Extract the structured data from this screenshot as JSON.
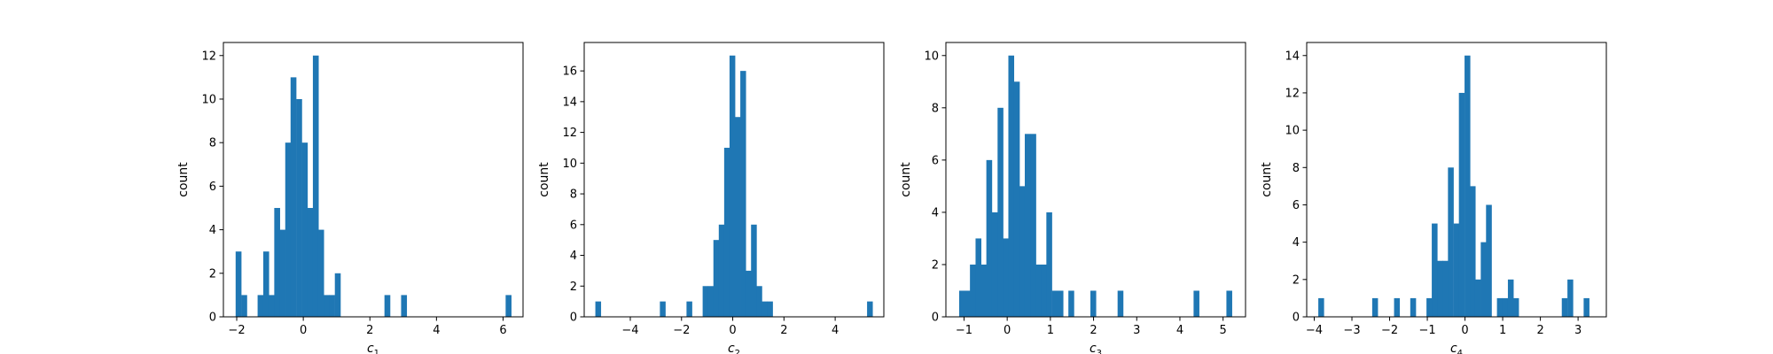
{
  "chart_data": [
    {
      "type": "bar",
      "xlabel": "c",
      "xlabel_sub": "1",
      "ylabel": "count",
      "xlim": [
        -2.4,
        6.6
      ],
      "ylim": [
        0,
        12.6
      ],
      "xticks": [
        -2,
        0,
        2,
        4,
        6
      ],
      "yticks": [
        0,
        2,
        4,
        6,
        8,
        10,
        12
      ],
      "grid": false,
      "bin_width": 0.165,
      "color": "#1f77b4",
      "bins": [
        {
          "x": -1.95,
          "count": 3
        },
        {
          "x": -1.78,
          "count": 1
        },
        {
          "x": -1.29,
          "count": 1
        },
        {
          "x": -1.12,
          "count": 3
        },
        {
          "x": -0.96,
          "count": 1
        },
        {
          "x": -0.79,
          "count": 5
        },
        {
          "x": -0.63,
          "count": 4
        },
        {
          "x": -0.46,
          "count": 8
        },
        {
          "x": -0.3,
          "count": 11
        },
        {
          "x": -0.13,
          "count": 10
        },
        {
          "x": 0.04,
          "count": 8
        },
        {
          "x": 0.2,
          "count": 5
        },
        {
          "x": 0.37,
          "count": 12
        },
        {
          "x": 0.53,
          "count": 4
        },
        {
          "x": 0.7,
          "count": 1
        },
        {
          "x": 0.86,
          "count": 1
        },
        {
          "x": 1.03,
          "count": 2
        },
        {
          "x": 2.52,
          "count": 1
        },
        {
          "x": 3.02,
          "count": 1
        },
        {
          "x": 6.16,
          "count": 1
        }
      ]
    },
    {
      "type": "bar",
      "xlabel": "c",
      "xlabel_sub": "2",
      "ylabel": "count",
      "xlim": [
        -5.8,
        5.9
      ],
      "ylim": [
        0,
        17.85
      ],
      "xticks": [
        -4,
        -2,
        0,
        2,
        4
      ],
      "yticks": [
        0,
        2,
        4,
        6,
        8,
        10,
        12,
        14,
        16
      ],
      "grid": false,
      "bin_width": 0.21,
      "color": "#1f77b4",
      "bins": [
        {
          "x": -5.26,
          "count": 1
        },
        {
          "x": -2.74,
          "count": 1
        },
        {
          "x": -1.7,
          "count": 1
        },
        {
          "x": -1.07,
          "count": 2
        },
        {
          "x": -0.86,
          "count": 2
        },
        {
          "x": -0.65,
          "count": 5
        },
        {
          "x": -0.44,
          "count": 6
        },
        {
          "x": -0.23,
          "count": 11
        },
        {
          "x": -0.02,
          "count": 17
        },
        {
          "x": 0.19,
          "count": 13
        },
        {
          "x": 0.4,
          "count": 16
        },
        {
          "x": 0.61,
          "count": 3
        },
        {
          "x": 0.82,
          "count": 6
        },
        {
          "x": 1.03,
          "count": 2
        },
        {
          "x": 1.24,
          "count": 1
        },
        {
          "x": 1.45,
          "count": 1
        },
        {
          "x": 5.35,
          "count": 1
        }
      ]
    },
    {
      "type": "bar",
      "xlabel": "c",
      "xlabel_sub": "3",
      "ylabel": "count",
      "xlim": [
        -1.42,
        5.52
      ],
      "ylim": [
        0,
        10.5
      ],
      "xticks": [
        -1,
        0,
        1,
        2,
        3,
        4,
        5
      ],
      "yticks": [
        0,
        2,
        4,
        6,
        8,
        10
      ],
      "grid": false,
      "bin_width": 0.126,
      "color": "#1f77b4",
      "bins": [
        {
          "x": -1.05,
          "count": 1
        },
        {
          "x": -0.92,
          "count": 1
        },
        {
          "x": -0.8,
          "count": 2
        },
        {
          "x": -0.67,
          "count": 3
        },
        {
          "x": -0.54,
          "count": 2
        },
        {
          "x": -0.42,
          "count": 6
        },
        {
          "x": -0.29,
          "count": 4
        },
        {
          "x": -0.16,
          "count": 8
        },
        {
          "x": -0.04,
          "count": 3
        },
        {
          "x": 0.09,
          "count": 10
        },
        {
          "x": 0.22,
          "count": 9
        },
        {
          "x": 0.34,
          "count": 5
        },
        {
          "x": 0.47,
          "count": 7
        },
        {
          "x": 0.6,
          "count": 7
        },
        {
          "x": 0.72,
          "count": 2
        },
        {
          "x": 0.85,
          "count": 2
        },
        {
          "x": 0.97,
          "count": 4
        },
        {
          "x": 1.1,
          "count": 1
        },
        {
          "x": 1.23,
          "count": 1
        },
        {
          "x": 1.48,
          "count": 1
        },
        {
          "x": 1.99,
          "count": 1
        },
        {
          "x": 2.62,
          "count": 1
        },
        {
          "x": 4.38,
          "count": 1
        },
        {
          "x": 5.14,
          "count": 1
        }
      ]
    },
    {
      "type": "bar",
      "xlabel": "c",
      "xlabel_sub": "4",
      "ylabel": "count",
      "xlim": [
        -4.2,
        3.75
      ],
      "ylim": [
        0,
        14.7
      ],
      "xticks": [
        -4,
        -3,
        -2,
        -1,
        0,
        1,
        2,
        3
      ],
      "yticks": [
        0,
        2,
        4,
        6,
        8,
        10,
        12,
        14
      ],
      "grid": false,
      "bin_width": 0.144,
      "color": "#1f77b4",
      "bins": [
        {
          "x": -3.82,
          "count": 1
        },
        {
          "x": -2.39,
          "count": 1
        },
        {
          "x": -1.81,
          "count": 1
        },
        {
          "x": -1.38,
          "count": 1
        },
        {
          "x": -0.95,
          "count": 1
        },
        {
          "x": -0.81,
          "count": 5
        },
        {
          "x": -0.66,
          "count": 3
        },
        {
          "x": -0.52,
          "count": 3
        },
        {
          "x": -0.38,
          "count": 8
        },
        {
          "x": -0.23,
          "count": 5
        },
        {
          "x": -0.09,
          "count": 12
        },
        {
          "x": 0.06,
          "count": 14
        },
        {
          "x": 0.2,
          "count": 7
        },
        {
          "x": 0.34,
          "count": 2
        },
        {
          "x": 0.49,
          "count": 4
        },
        {
          "x": 0.63,
          "count": 6
        },
        {
          "x": 0.92,
          "count": 1
        },
        {
          "x": 1.06,
          "count": 1
        },
        {
          "x": 1.21,
          "count": 2
        },
        {
          "x": 1.35,
          "count": 1
        },
        {
          "x": 2.64,
          "count": 1
        },
        {
          "x": 2.79,
          "count": 2
        },
        {
          "x": 3.22,
          "count": 1
        }
      ]
    }
  ]
}
